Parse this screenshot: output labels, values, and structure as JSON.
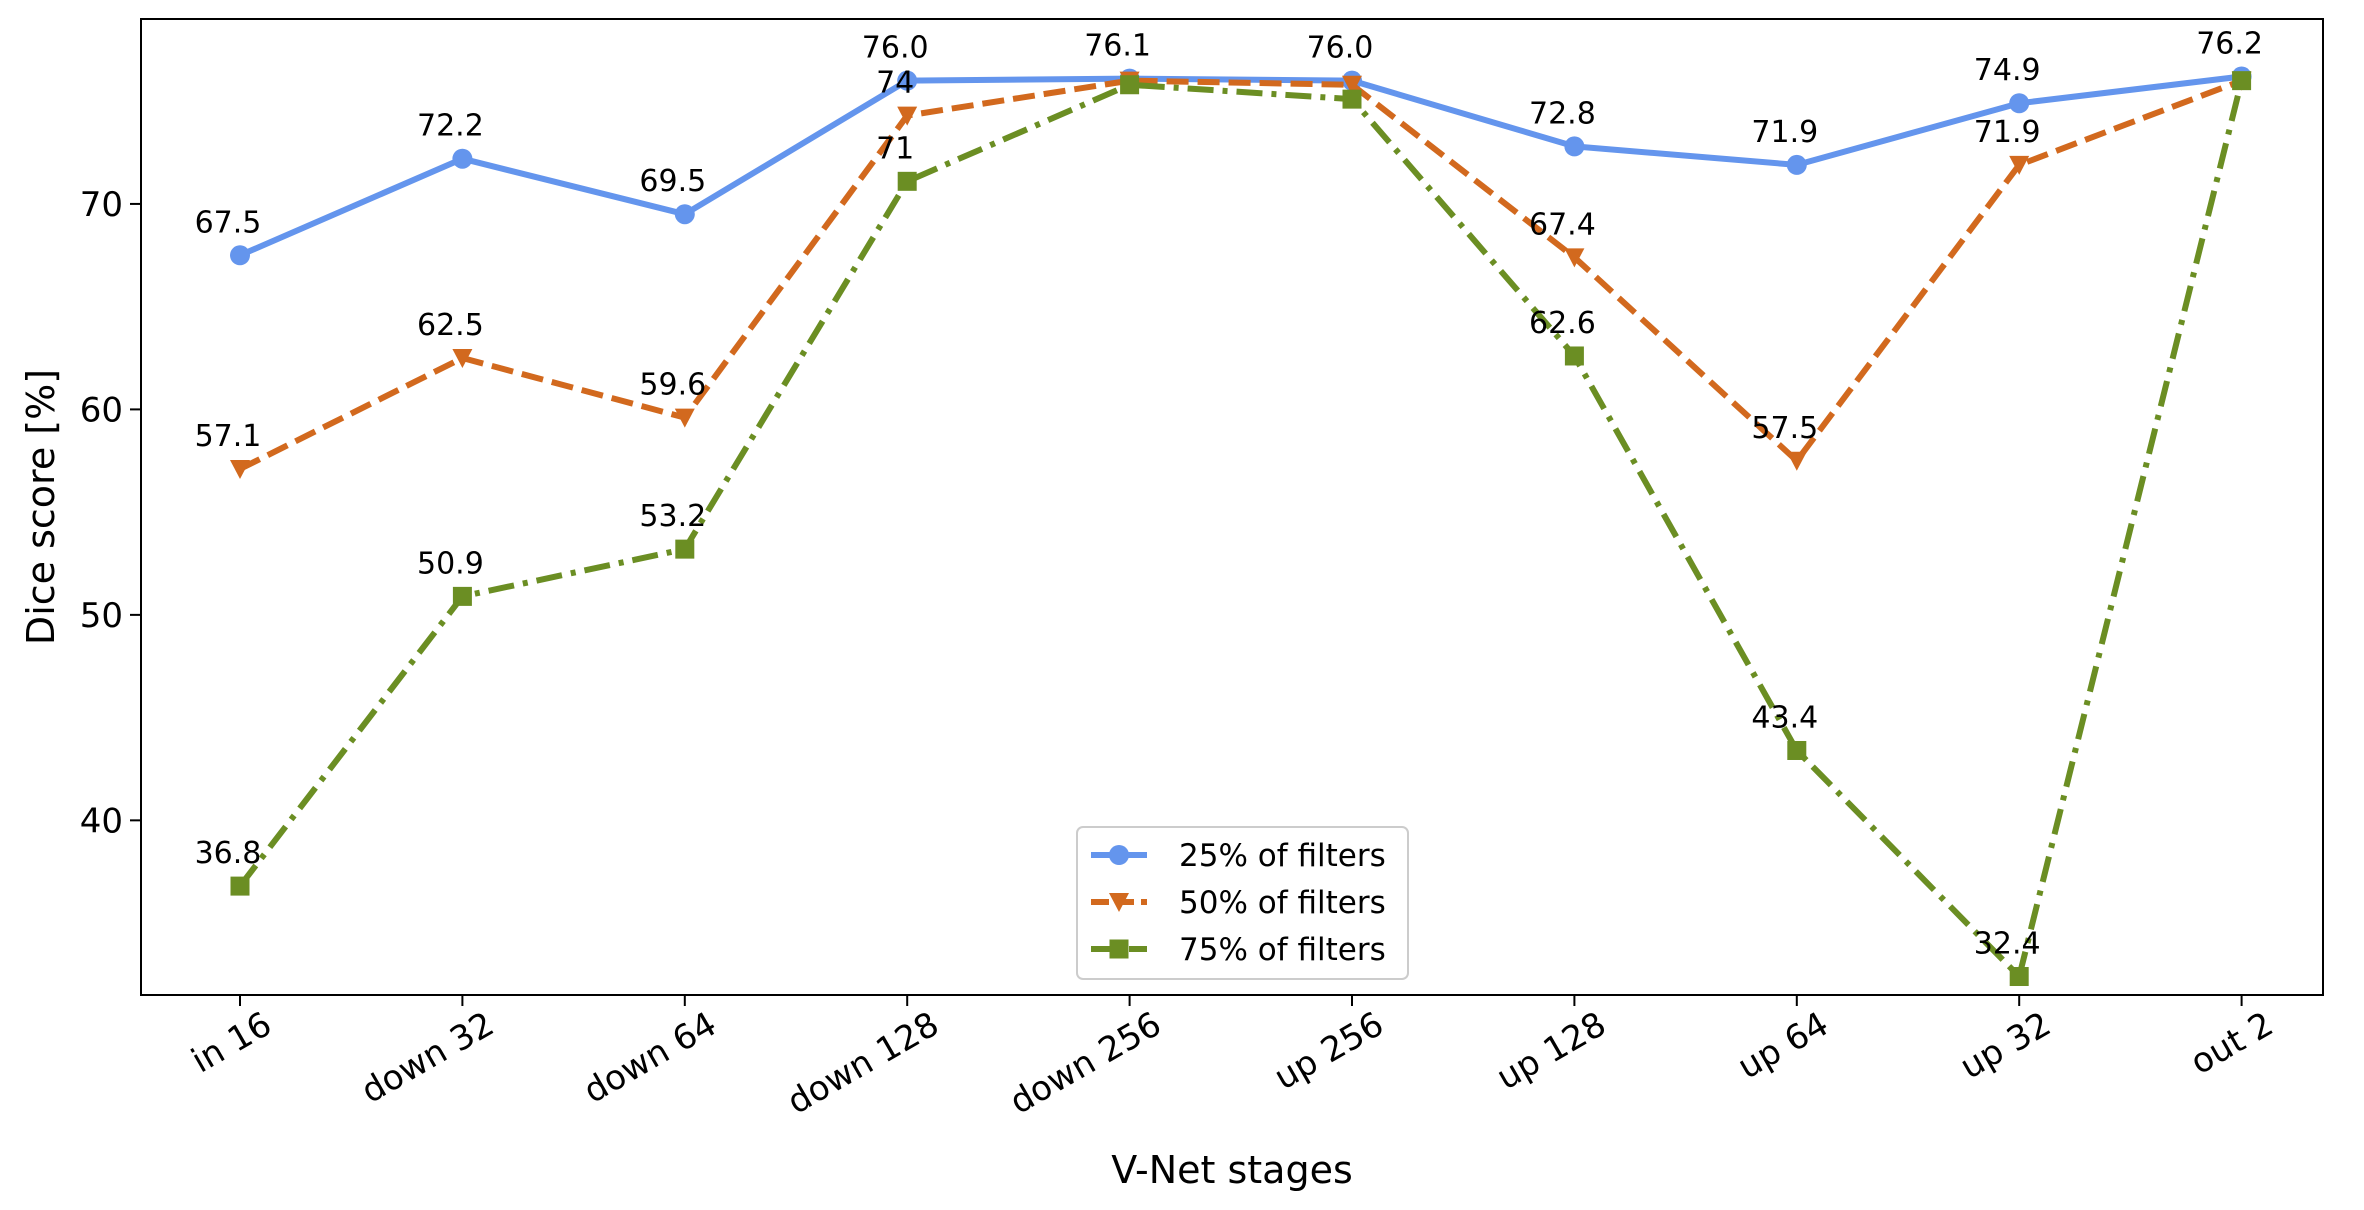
{
  "chart_data": {
    "type": "line",
    "title": "",
    "xlabel": "V-Net stages",
    "ylabel": "Dice score [%]",
    "categories": [
      "in 16",
      "down 32",
      "down 64",
      "down 128",
      "down 256",
      "up 256",
      "up 128",
      "up 64",
      "up 32",
      "out 2"
    ],
    "ylim": [
      31.5,
      79
    ],
    "yticks": [
      40,
      50,
      60,
      70
    ],
    "grid": false,
    "legend_position": "lower-center",
    "series": [
      {
        "name": "25% of filters",
        "color": "#6495ED",
        "linestyle": "solid",
        "marker": "circle",
        "values": [
          67.5,
          72.2,
          69.5,
          76.0,
          76.1,
          76.0,
          72.8,
          71.9,
          74.9,
          76.2
        ],
        "labels": [
          "67.5",
          "72.2",
          "69.5",
          "76.0",
          "76.1",
          "76.0",
          "72.8",
          "71.9",
          "74.9",
          "76.2"
        ]
      },
      {
        "name": "50% of filters",
        "color": "#D2691E",
        "linestyle": "dashed",
        "marker": "triangle-down",
        "values": [
          57.1,
          62.5,
          59.6,
          74.3,
          76.0,
          75.8,
          67.4,
          57.5,
          71.9,
          76.0
        ],
        "labels": [
          "57.1",
          "62.5",
          "59.6",
          "74",
          "",
          "",
          "67.4",
          "57.5",
          "71.9",
          ""
        ]
      },
      {
        "name": "75% of filters",
        "color": "#6B8E23",
        "linestyle": "dashdot",
        "marker": "square",
        "values": [
          36.8,
          50.9,
          53.2,
          71.1,
          75.8,
          75.1,
          62.6,
          43.4,
          32.4,
          76.0
        ],
        "labels": [
          "36.8",
          "50.9",
          "53.2",
          "71",
          "",
          "",
          "62.6",
          "43.4",
          "32.4",
          ""
        ]
      }
    ]
  }
}
